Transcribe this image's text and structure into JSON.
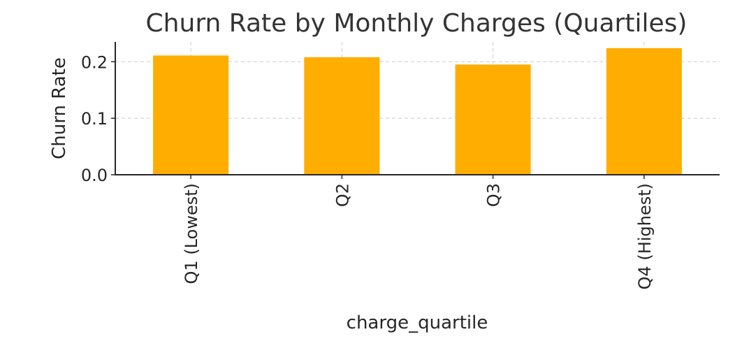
{
  "chart_data": {
    "type": "bar",
    "title": "Churn Rate by Monthly Charges (Quartiles)",
    "xlabel": "charge_quartile",
    "ylabel": "Churn Rate",
    "categories": [
      "Q1 (Lowest)",
      "Q2",
      "Q3",
      "Q4 (Highest)"
    ],
    "values": [
      0.211,
      0.208,
      0.195,
      0.224
    ],
    "ylim": [
      0,
      0.235
    ],
    "yticks": [
      0.0,
      0.1,
      0.2
    ],
    "ytick_labels": [
      "0.0",
      "0.1",
      "0.2"
    ],
    "grid": true,
    "bar_color": "#FFAE00",
    "grid_color": "#cccccc",
    "text_color": "#262626"
  }
}
